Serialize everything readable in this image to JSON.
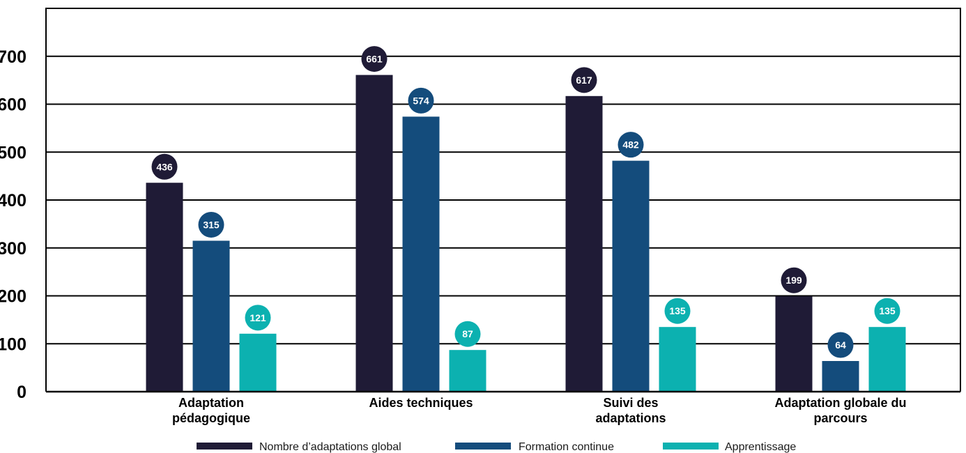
{
  "chart_data": {
    "type": "bar",
    "title": "",
    "xlabel": "",
    "ylabel": "",
    "ylim": [
      0,
      800
    ],
    "yticks": [
      0,
      100,
      200,
      300,
      400,
      500,
      600,
      700
    ],
    "grid": true,
    "legend_position": "bottom",
    "categories": [
      [
        "Adaptation",
        "pédagogique"
      ],
      [
        "Aides techniques"
      ],
      [
        "Suivi des",
        "adaptations"
      ],
      [
        "Adaptation globale du",
        "parcours"
      ]
    ],
    "series": [
      {
        "name": "Nombre d’adaptations global",
        "color": "#1f1b36",
        "values": [
          436,
          661,
          617,
          199
        ]
      },
      {
        "name": "Formation continue",
        "color": "#144c7c",
        "values": [
          315,
          574,
          482,
          64
        ]
      },
      {
        "name": "Apprentissage",
        "color": "#0cb1b0",
        "values": [
          121,
          87,
          135,
          135
        ]
      }
    ]
  }
}
